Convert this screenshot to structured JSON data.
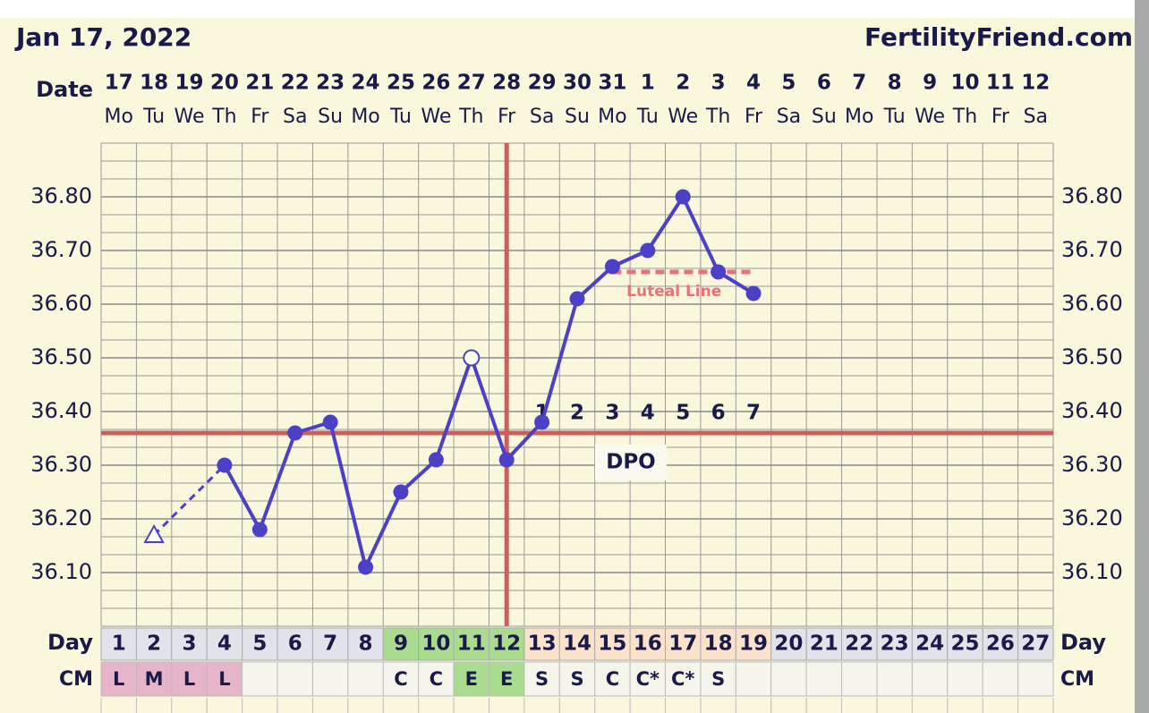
{
  "chart_data": {
    "type": "line",
    "title": "Jan 17, 2022",
    "site": "FertilityFriend.com",
    "date_label": "Date",
    "dates": [
      "17",
      "18",
      "19",
      "20",
      "21",
      "22",
      "23",
      "24",
      "25",
      "26",
      "27",
      "28",
      "29",
      "30",
      "31",
      "1",
      "2",
      "3",
      "4",
      "5",
      "6",
      "7",
      "8",
      "9",
      "10",
      "11",
      "12"
    ],
    "weekdays": [
      "Mo",
      "Tu",
      "We",
      "Th",
      "Fr",
      "Sa",
      "Su",
      "Mo",
      "Tu",
      "We",
      "Th",
      "Fr",
      "Sa",
      "Su",
      "Mo",
      "Tu",
      "We",
      "Th",
      "Fr",
      "Sa",
      "Su",
      "Mo",
      "Tu",
      "We",
      "Th",
      "Fr",
      "Sa"
    ],
    "ylim": [
      36.0,
      36.9
    ],
    "yticks": [
      {
        "value": 36.1,
        "label": "36.10"
      },
      {
        "value": 36.2,
        "label": "36.20"
      },
      {
        "value": 36.3,
        "label": "36.30"
      },
      {
        "value": 36.4,
        "label": "36.40"
      },
      {
        "value": 36.5,
        "label": "36.50"
      },
      {
        "value": 36.6,
        "label": "36.60"
      },
      {
        "value": 36.7,
        "label": "36.70"
      },
      {
        "value": 36.8,
        "label": "36.80"
      }
    ],
    "values": [
      null,
      36.17,
      null,
      36.3,
      36.18,
      36.36,
      36.38,
      36.11,
      36.25,
      36.31,
      36.5,
      36.31,
      36.38,
      36.61,
      36.67,
      36.7,
      36.8,
      36.66,
      36.62,
      null,
      null,
      null,
      null,
      null,
      null,
      null,
      null
    ],
    "markers": [
      null,
      "open-triangle",
      null,
      "circle",
      "circle",
      "circle",
      "circle",
      "circle",
      "circle",
      "circle",
      "open-circle",
      "circle",
      "circle",
      "circle",
      "circle",
      "circle",
      "circle",
      "circle",
      "circle",
      null,
      null,
      null,
      null,
      null,
      null,
      null,
      null
    ],
    "color": "#4b40c6",
    "coverline": 36.36,
    "coverline_color": "#c9605b",
    "ovulation_day": 12,
    "luteal_line": {
      "label": "Luteal Line",
      "value": 36.66,
      "days": [
        15,
        19
      ],
      "color": "#e8727c"
    },
    "dpo_label": "DPO",
    "dpo": [
      null,
      null,
      null,
      null,
      null,
      null,
      null,
      null,
      null,
      null,
      null,
      null,
      1,
      2,
      3,
      4,
      5,
      6,
      7,
      null,
      null,
      null,
      null,
      null,
      null,
      null,
      null
    ],
    "day_label": "Day",
    "days": [
      1,
      2,
      3,
      4,
      5,
      6,
      7,
      8,
      9,
      10,
      11,
      12,
      13,
      14,
      15,
      16,
      17,
      18,
      19,
      20,
      21,
      22,
      23,
      24,
      25,
      26,
      27
    ],
    "day_colors": [
      "#e2e2ea",
      "#e2e2ea",
      "#e2e2ea",
      "#e2e2ea",
      "#e2e2ea",
      "#e2e2ea",
      "#e2e2ea",
      "#e2e2ea",
      "#a9dc8e",
      "#a9dc8e",
      "#a9dc8e",
      "#a9dc8e",
      "#fbe3cb",
      "#fbe3cb",
      "#fbe3cb",
      "#fbe3cb",
      "#fbe3cb",
      "#fbe3cb",
      "#fbe3cb",
      "#e2e2ea",
      "#e2e2ea",
      "#e2e2ea",
      "#e2e2ea",
      "#e2e2ea",
      "#e2e2ea",
      "#e2e2ea",
      "#e2e2ea"
    ],
    "cm_label": "CM",
    "cm": [
      "L",
      "M",
      "L",
      "L",
      null,
      null,
      null,
      null,
      "C",
      "C",
      "E",
      "E",
      "S",
      "S",
      "C",
      "C*",
      "C*",
      "S",
      null,
      null,
      null,
      null,
      null,
      null,
      null,
      null,
      null
    ],
    "cm_colors": {
      "L": "#e7b5ca",
      "M": "#e7b5ca",
      "E": "#a9dc8e"
    }
  }
}
